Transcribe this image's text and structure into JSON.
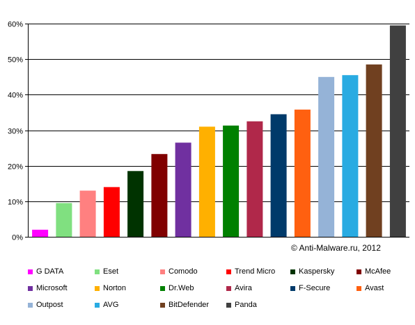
{
  "chart_data": {
    "type": "bar",
    "categories": [
      "G DATA",
      "Eset",
      "Comodo",
      "Trend Micro",
      "Kaspersky",
      "McAfee",
      "Microsoft",
      "Norton",
      "Dr.Web",
      "Avira",
      "F-Secure",
      "Avast",
      "Outpost",
      "AVG",
      "BitDefender",
      "Panda"
    ],
    "values": [
      2,
      9.5,
      13,
      14,
      18.5,
      23.3,
      26.5,
      31,
      31.3,
      32.5,
      34.5,
      35.8,
      45,
      45.5,
      48.5,
      59.5
    ],
    "colors": [
      "#ff00ff",
      "#80e080",
      "#ff8080",
      "#ff0000",
      "#003300",
      "#800000",
      "#7030a0",
      "#ffb000",
      "#008000",
      "#b0284a",
      "#003a6a",
      "#ff6010",
      "#95b3d7",
      "#29abe2",
      "#704020",
      "#404040"
    ],
    "ylim": [
      0,
      60
    ],
    "yticks": [
      "0%",
      "10%",
      "20%",
      "30%",
      "40%",
      "50%",
      "60%"
    ],
    "grid": true,
    "legend_position": "bottom"
  },
  "copyright": "© Anti-Malware.ru, 2012"
}
